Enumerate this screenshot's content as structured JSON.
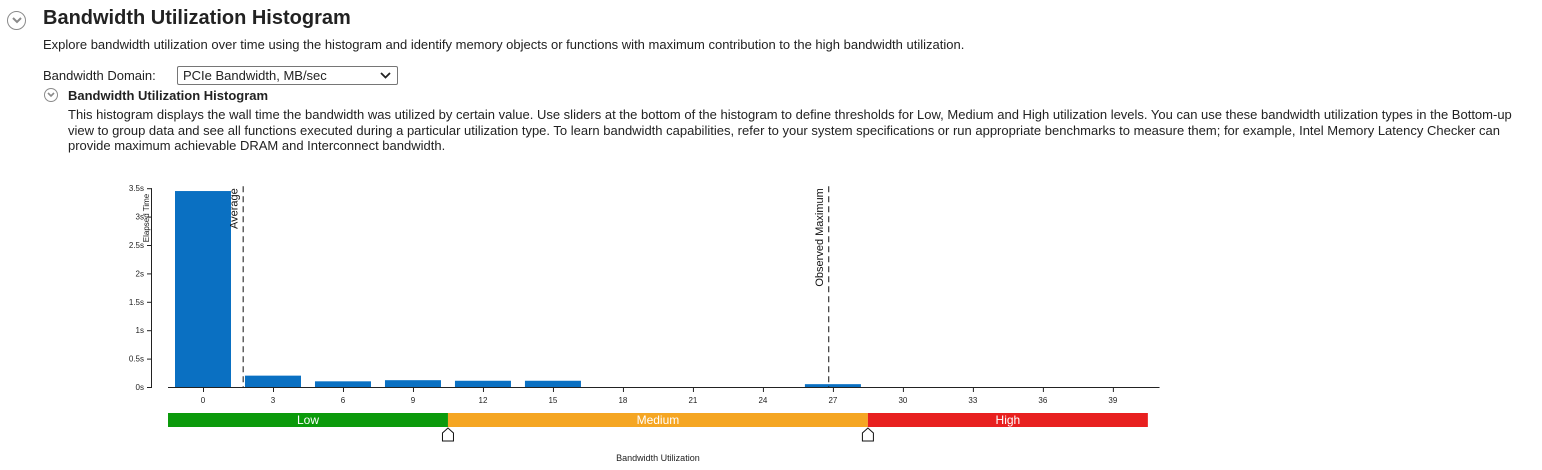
{
  "header": {
    "title": "Bandwidth Utilization Histogram",
    "description": "Explore bandwidth utilization over time using the histogram and identify memory objects or functions with maximum contribution to the high bandwidth utilization."
  },
  "domain": {
    "label": "Bandwidth Domain:",
    "selected": "PCIe Bandwidth, MB/sec"
  },
  "section": {
    "title": "Bandwidth Utilization Histogram",
    "description": "This histogram displays the wall time the bandwidth was utilized by certain value. Use sliders at the bottom of the histogram to define thresholds for Low, Medium and High utilization levels. You can use these bandwidth utilization types in the Bottom-up view to group data and see all functions executed during a particular utilization type. To learn bandwidth capabilities, refer to your system specifications or run appropriate benchmarks to measure them; for example, Intel Memory Latency Checker can provide maximum achievable DRAM and Interconnect bandwidth."
  },
  "icons": [
    "chevron-circle-icon",
    "select-chevron-icon",
    "slider-thumb-icon"
  ],
  "colors": {
    "bar": "#0a70c2",
    "low": "#0b9a0b",
    "medium": "#f5a623",
    "high": "#e8201f"
  },
  "chart_data": {
    "type": "bar",
    "ylabel": "Elapsed Time",
    "xlabel": "Bandwidth Utilization",
    "ylim": [
      0,
      3.5
    ],
    "xlim": [
      -1.5,
      41
    ],
    "yticks": [
      "0s",
      "0.5s",
      "1s",
      "1.5s",
      "2s",
      "2.5s",
      "3s",
      "3.5s"
    ],
    "ytick_values": [
      0,
      0.5,
      1,
      1.5,
      2,
      2.5,
      3,
      3.5
    ],
    "xticks": [
      0,
      3,
      6,
      9,
      12,
      15,
      18,
      21,
      24,
      27,
      30,
      33,
      36,
      39
    ],
    "bin_width": 2.4,
    "x": [
      0,
      3,
      6,
      9,
      12,
      15,
      27
    ],
    "values": [
      3.45,
      0.2,
      0.1,
      0.12,
      0.11,
      0.11,
      0.05
    ],
    "markers": [
      {
        "label": "Average",
        "x": 1.7
      },
      {
        "label": "Observed Maximum",
        "x": 26.8
      }
    ],
    "levels": [
      {
        "name": "Low",
        "from": -1.5,
        "to": 10.5,
        "color": "#0b9a0b"
      },
      {
        "name": "Medium",
        "from": 10.5,
        "to": 28.5,
        "color": "#f5a623"
      },
      {
        "name": "High",
        "from": 28.5,
        "to": 40.5,
        "color": "#e8201f"
      }
    ],
    "thresholds": [
      10.5,
      28.5
    ]
  }
}
